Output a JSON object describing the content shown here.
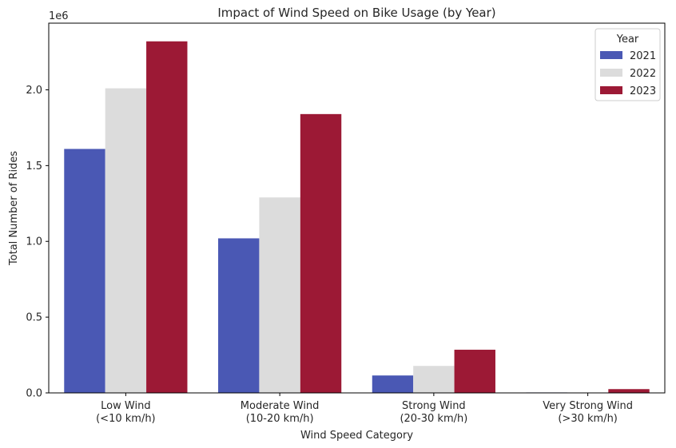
{
  "chart_data": {
    "type": "bar",
    "title": "Impact of Wind Speed on Bike Usage (by Year)",
    "xlabel": "Wind Speed Category",
    "ylabel": "Total Number of Rides",
    "y_offset_label": "1e6",
    "ylim": [
      0,
      2.44
    ],
    "yticks": [
      0.0,
      0.5,
      1.0,
      1.5,
      2.0
    ],
    "ytick_labels": [
      "0.0",
      "0.5",
      "1.0",
      "1.5",
      "2.0"
    ],
    "categories": [
      [
        "Low Wind",
        "(<10 km/h)"
      ],
      [
        "Moderate Wind",
        "(10-20 km/h)"
      ],
      [
        "Strong Wind",
        "(20-30 km/h)"
      ],
      [
        "Very Strong Wind",
        "(>30 km/h)"
      ]
    ],
    "series": [
      {
        "name": "2021",
        "color": "#4a58b4",
        "values": [
          1.61,
          1.02,
          0.115,
          0.003
        ]
      },
      {
        "name": "2022",
        "color": "#dcdcdc",
        "values": [
          2.01,
          1.29,
          0.178,
          0.002
        ]
      },
      {
        "name": "2023",
        "color": "#9c1935",
        "values": [
          2.32,
          1.84,
          0.285,
          0.025
        ]
      }
    ],
    "legend": {
      "title": "Year",
      "position": "top-right"
    },
    "grid": false
  }
}
